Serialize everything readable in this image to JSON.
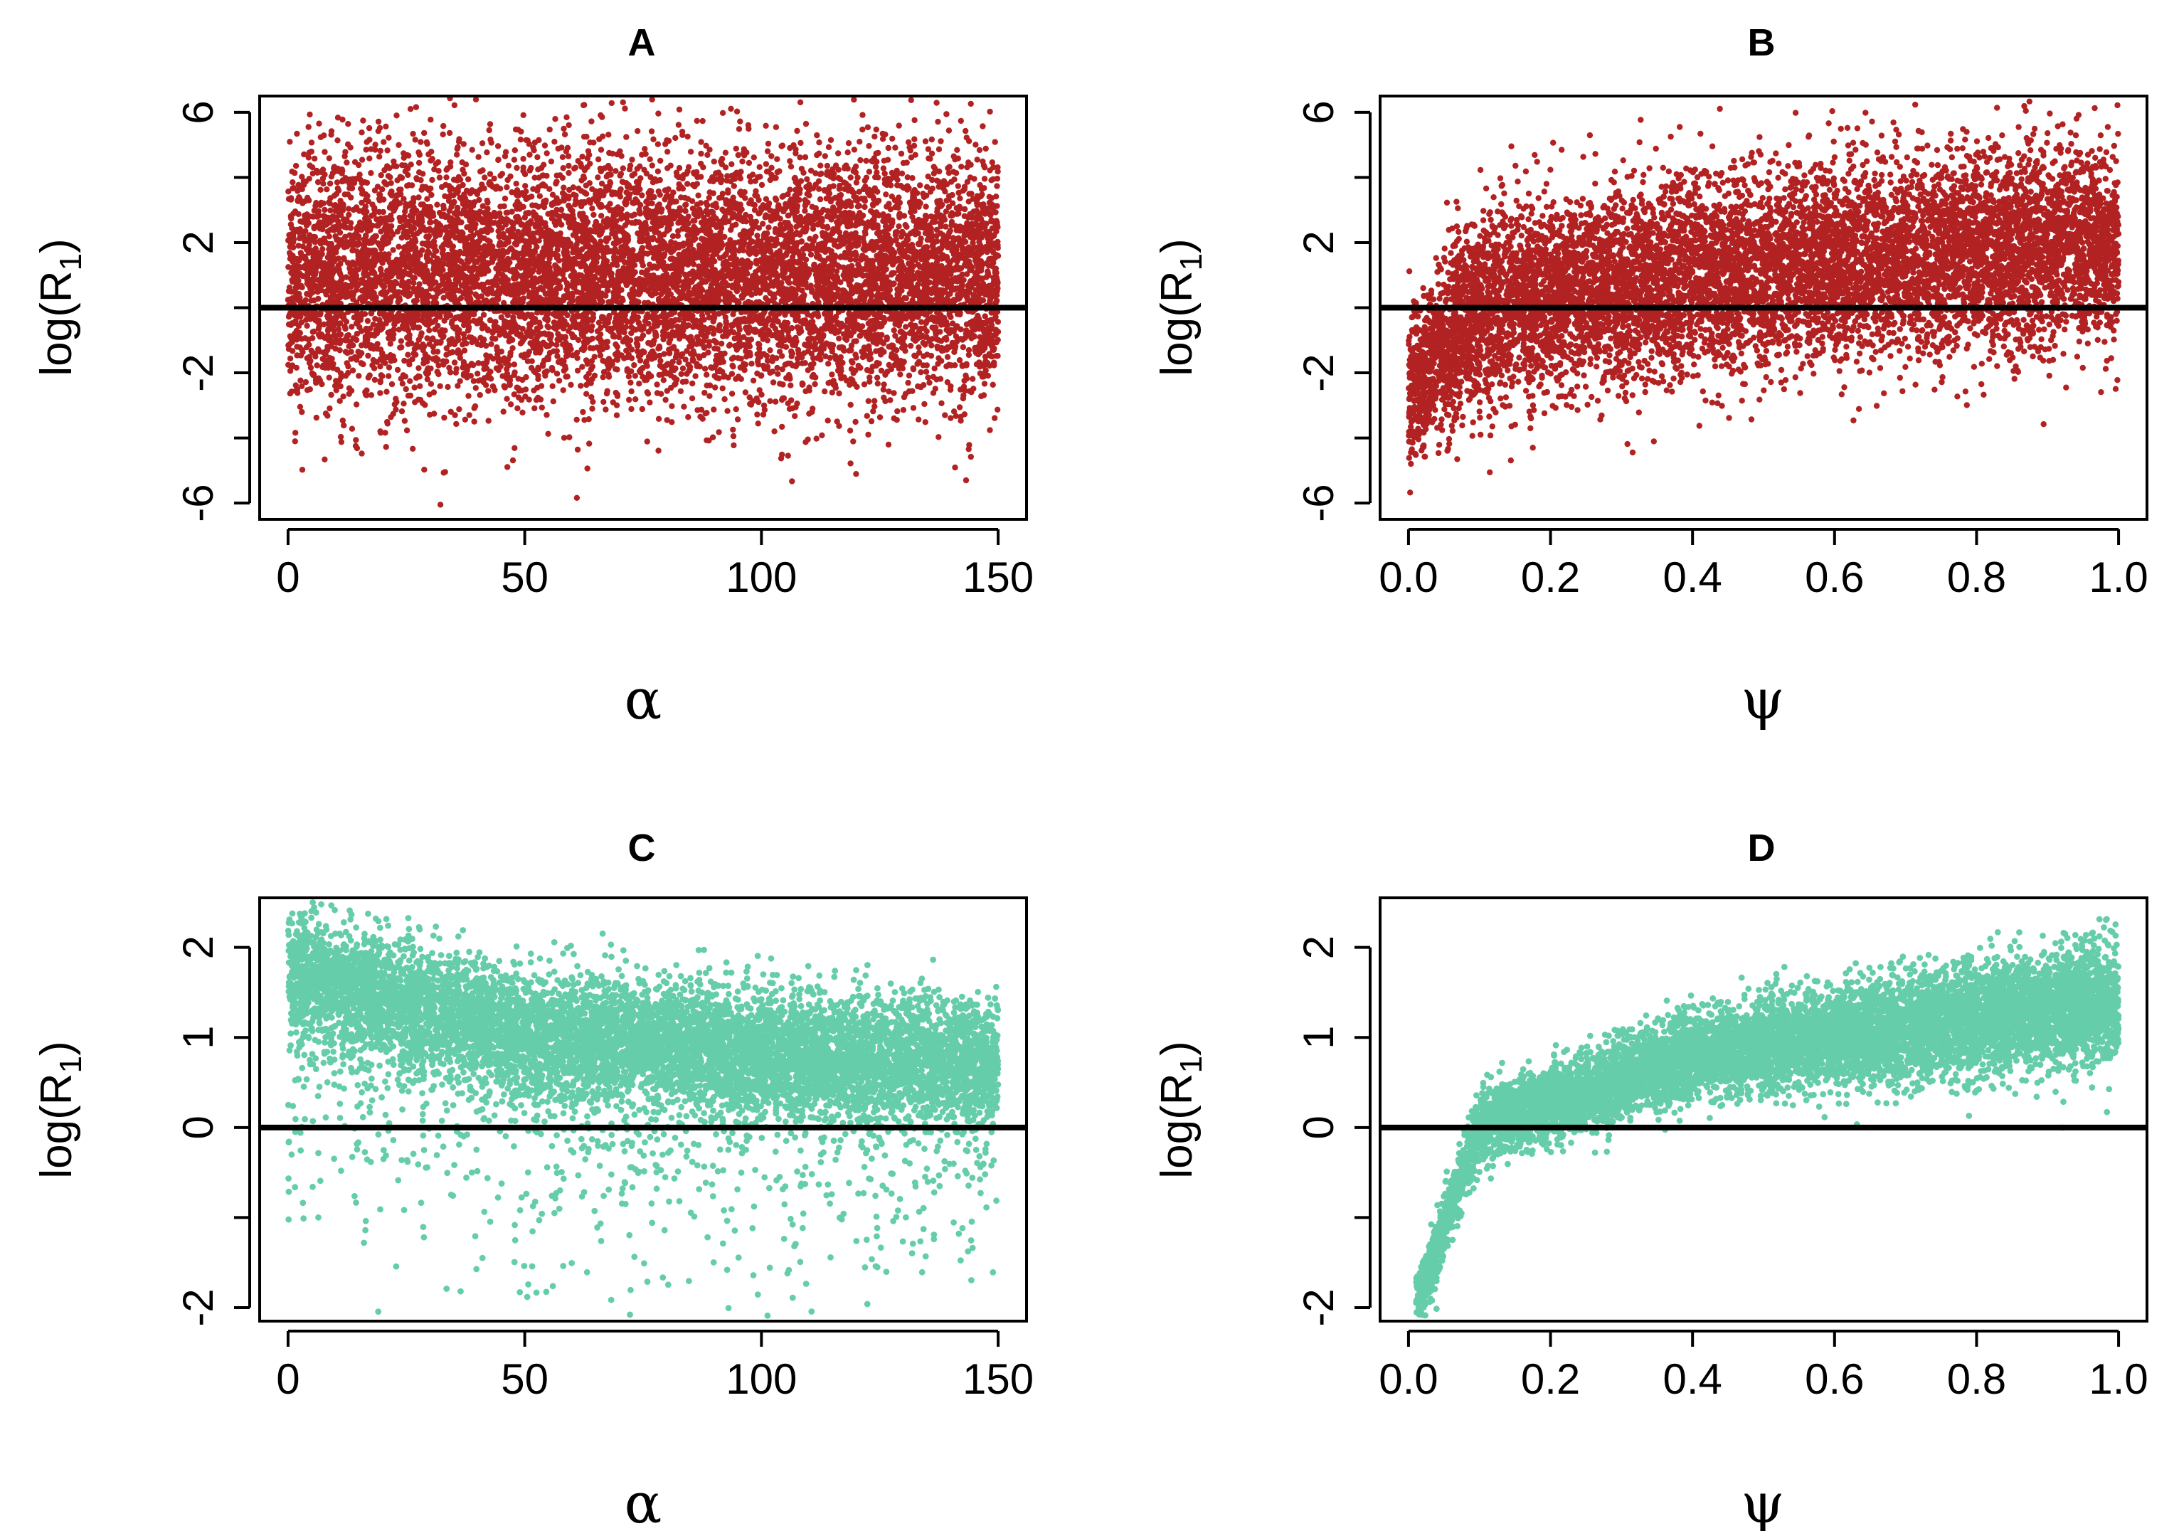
{
  "chart_data": [
    {
      "id": "A",
      "type": "scatter",
      "title": "A",
      "xlabel": "α",
      "ylabel_main": "log(R",
      "ylabel_sub": "1",
      "ylabel_close": ")",
      "xlim": [
        -6,
        156
      ],
      "ylim": [
        -6.5,
        6.5
      ],
      "xticks": [
        0,
        50,
        100,
        150
      ],
      "xtick_labels": [
        "0",
        "50",
        "100",
        "150"
      ],
      "yticks": [
        -6,
        -4,
        -2,
        0,
        2,
        4,
        6
      ],
      "ytick_labels": [
        "-6",
        "",
        "-2",
        "",
        "2",
        "",
        "6"
      ],
      "hline": 0,
      "color": "#b22222",
      "grid": false,
      "series": [
        {
          "n_points": 9000,
          "x_range": [
            0,
            150
          ],
          "trend": "flat",
          "center_at_x": {
            "0": 1.0,
            "150": 1.0
          },
          "spread_sd": 1.9,
          "y_observed_range": [
            -6.3,
            6.5
          ]
        }
      ]
    },
    {
      "id": "B",
      "type": "scatter",
      "title": "B",
      "xlabel": "ψ",
      "ylabel_main": "log(R",
      "ylabel_sub": "1",
      "ylabel_close": ")",
      "xlim": [
        -0.04,
        1.04
      ],
      "ylim": [
        -6.5,
        6.5
      ],
      "xticks": [
        0.0,
        0.2,
        0.4,
        0.6,
        0.8,
        1.0
      ],
      "xtick_labels": [
        "0.0",
        "0.2",
        "0.4",
        "0.6",
        "0.8",
        "1.0"
      ],
      "yticks": [
        -6,
        -4,
        -2,
        0,
        2,
        4,
        6
      ],
      "ytick_labels": [
        "-6",
        "",
        "-2",
        "",
        "2",
        "",
        "6"
      ],
      "hline": 0,
      "color": "#b22222",
      "grid": false,
      "series": [
        {
          "n_points": 9000,
          "x_range": [
            0,
            1
          ],
          "trend": "increasing-saturating",
          "center_at_x": {
            "0.0": -2.5,
            "0.1": 0.0,
            "0.4": 1.0,
            "1.0": 2.0
          },
          "spread_sd": 1.5,
          "y_observed_range": [
            -6.2,
            6.5
          ]
        }
      ]
    },
    {
      "id": "C",
      "type": "scatter",
      "title": "C",
      "xlabel": "α",
      "ylabel_main": "log(R",
      "ylabel_sub": "1",
      "ylabel_close": ")",
      "xlim": [
        -6,
        156
      ],
      "ylim": [
        -2.15,
        2.55
      ],
      "xticks": [
        0,
        50,
        100,
        150
      ],
      "xtick_labels": [
        "0",
        "50",
        "100",
        "150"
      ],
      "yticks": [
        -2,
        -1,
        0,
        1,
        2
      ],
      "ytick_labels": [
        "-2",
        "",
        "0",
        "1",
        "2"
      ],
      "hline": 0,
      "color": "#66cdaa",
      "grid": false,
      "series": [
        {
          "n_points": 9000,
          "x_range": [
            0,
            150
          ],
          "trend": "decreasing",
          "center_at_x": {
            "0": 1.7,
            "50": 1.05,
            "100": 0.85,
            "150": 0.7
          },
          "spread_sd": 0.4,
          "y_observed_range": [
            -2.1,
            2.5
          ]
        }
      ]
    },
    {
      "id": "D",
      "type": "scatter",
      "title": "D",
      "xlabel": "ψ",
      "ylabel_main": "log(R",
      "ylabel_sub": "1",
      "ylabel_close": ")",
      "xlim": [
        -0.04,
        1.04
      ],
      "ylim": [
        -2.15,
        2.55
      ],
      "xticks": [
        0.0,
        0.2,
        0.4,
        0.6,
        0.8,
        1.0
      ],
      "xtick_labels": [
        "0.0",
        "0.2",
        "0.4",
        "0.6",
        "0.8",
        "1.0"
      ],
      "yticks": [
        -2,
        -1,
        0,
        1,
        2
      ],
      "ytick_labels": [
        "-2",
        "",
        "0",
        "1",
        "2"
      ],
      "hline": 0,
      "color": "#66cdaa",
      "grid": false,
      "series": [
        {
          "n_points": 9000,
          "x_range": [
            0.01,
            1
          ],
          "trend": "increasing-log",
          "center_at_x": {
            "0.01": -2.0,
            "0.1": 0.0,
            "0.4": 0.8,
            "1.0": 1.4
          },
          "spread_sd": 0.25,
          "y_observed_range": [
            -2.1,
            2.45
          ]
        }
      ]
    }
  ]
}
